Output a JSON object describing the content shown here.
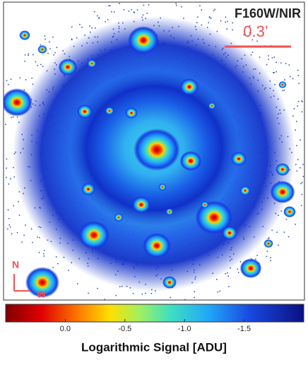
{
  "image": {
    "band_label": "F160W/NIR",
    "scale_label": "0.3’",
    "north_label": "N",
    "west_label": "W"
  },
  "colorbar": {
    "lim": [
      0.5,
      -2.0
    ],
    "ticks": [
      {
        "value": 0,
        "label": "0.0"
      },
      -0.5,
      {
        "value": -1,
        "label": "-1.0"
      },
      -1.5
    ],
    "label": "Logarithmic Signal [ADU]"
  }
}
